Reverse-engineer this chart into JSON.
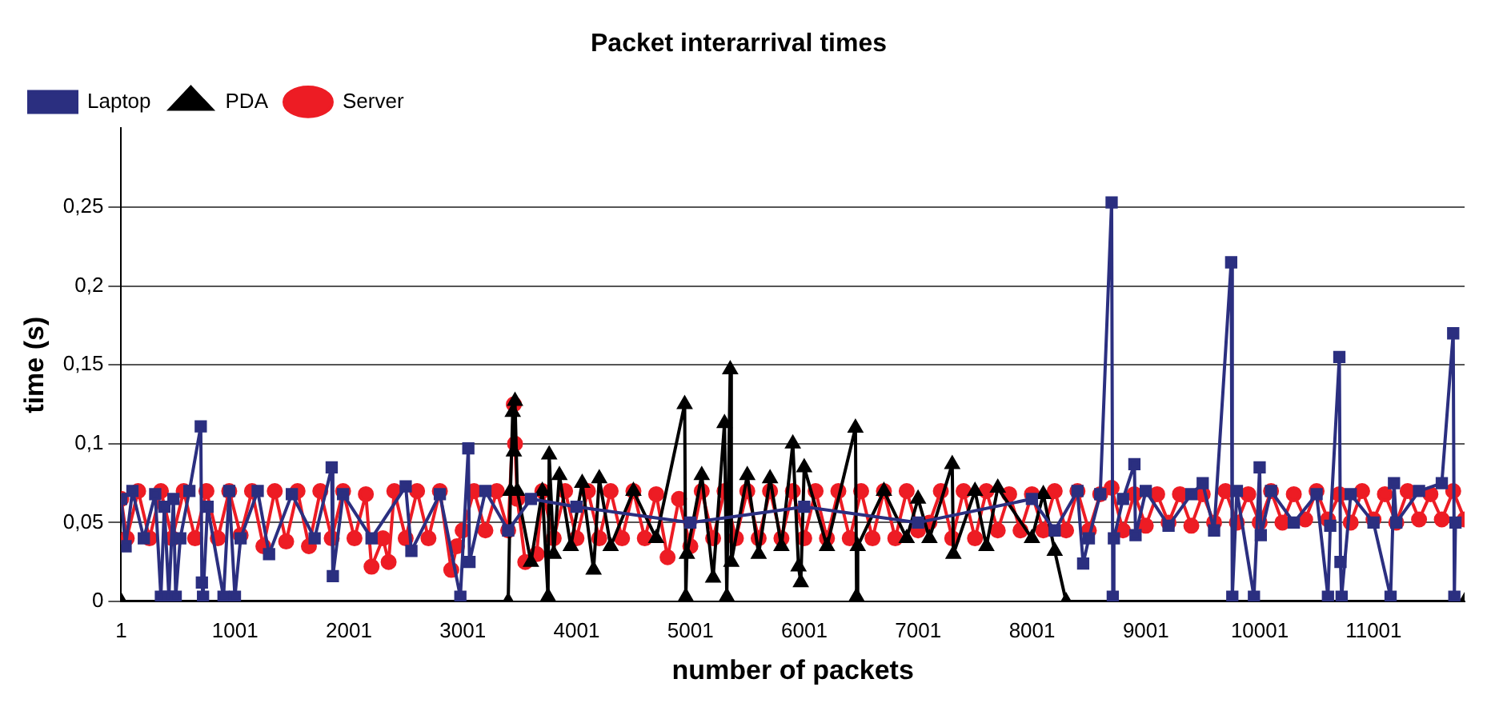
{
  "chart_data": {
    "type": "line",
    "title": "Packet interarrival times",
    "xlabel": "number of packets",
    "ylabel": "time (s)",
    "xlim": [
      1,
      11800
    ],
    "xticks": [
      1,
      1001,
      2001,
      3001,
      4001,
      5001,
      6001,
      7001,
      8001,
      9001,
      10001,
      11001
    ],
    "ylim": [
      0,
      0.3
    ],
    "yticks": [
      0,
      {
        "value": 0.05,
        "label": "0,05"
      },
      {
        "value": 0.1,
        "label": "0,1"
      },
      {
        "value": 0.15,
        "label": "0,15"
      },
      {
        "value": 0.2,
        "label": "0,2"
      },
      {
        "value": 0.25,
        "label": "0,25"
      }
    ],
    "grid": "y",
    "legend": "top left",
    "line_style": "solid",
    "series": [
      {
        "name": "Laptop",
        "color": "#2b2f80",
        "marker": "square",
        "x": [
          1,
          40,
          100,
          200,
          300,
          350,
          380,
          420,
          460,
          480,
          520,
          600,
          700,
          710,
          720,
          760,
          900,
          950,
          1000,
          1050,
          1200,
          1300,
          1500,
          1700,
          1850,
          1860,
          1950,
          2200,
          2500,
          2550,
          2800,
          2980,
          3050,
          3060,
          3200,
          3400,
          3600,
          4000,
          5000,
          6000,
          7000,
          8000,
          8200,
          8400,
          8450,
          8500,
          8600,
          8700,
          8710,
          8720,
          8800,
          8900,
          8910,
          9000,
          9200,
          9400,
          9500,
          9600,
          9750,
          9760,
          9800,
          9950,
          10000,
          10010,
          10100,
          10300,
          10500,
          10600,
          10620,
          10700,
          10710,
          10720,
          10800,
          11000,
          11150,
          11180,
          11200,
          11400,
          11600,
          11700,
          11710,
          11720
        ],
        "values": [
          0.065,
          0.035,
          0.07,
          0.04,
          0.068,
          0.003,
          0.06,
          0.003,
          0.065,
          0.003,
          0.04,
          0.07,
          0.111,
          0.012,
          0.003,
          0.06,
          0.003,
          0.07,
          0.003,
          0.04,
          0.07,
          0.03,
          0.068,
          0.04,
          0.085,
          0.016,
          0.068,
          0.04,
          0.073,
          0.032,
          0.068,
          0.003,
          0.097,
          0.025,
          0.07,
          0.045,
          0.065,
          0.06,
          0.05,
          0.06,
          0.05,
          0.065,
          0.045,
          0.07,
          0.024,
          0.04,
          0.068,
          0.253,
          0.003,
          0.04,
          0.065,
          0.087,
          0.042,
          0.07,
          0.048,
          0.068,
          0.075,
          0.045,
          0.215,
          0.003,
          0.07,
          0.003,
          0.085,
          0.042,
          0.07,
          0.05,
          0.068,
          0.003,
          0.048,
          0.155,
          0.025,
          0.003,
          0.068,
          0.05,
          0.003,
          0.075,
          0.05,
          0.07,
          0.075,
          0.17,
          0.003,
          0.05
        ]
      },
      {
        "name": "PDA",
        "color": "#000000",
        "marker": "triangle",
        "x": [
          1,
          3400,
          3420,
          3440,
          3450,
          3460,
          3480,
          3600,
          3700,
          3750,
          3760,
          3800,
          3850,
          3950,
          4050,
          4150,
          4200,
          4300,
          4500,
          4700,
          4950,
          4960,
          4970,
          5100,
          5200,
          5300,
          5320,
          5350,
          5360,
          5500,
          5600,
          5700,
          5800,
          5900,
          5950,
          5970,
          6000,
          6200,
          6450,
          6460,
          6470,
          6700,
          6900,
          7000,
          7100,
          7300,
          7310,
          7500,
          7600,
          7700,
          8000,
          8100,
          8200,
          8300,
          11800
        ],
        "values": [
          0,
          0,
          0.07,
          0.12,
          0.095,
          0.127,
          0.07,
          0.025,
          0.07,
          0.003,
          0.093,
          0.03,
          0.08,
          0.035,
          0.075,
          0.02,
          0.078,
          0.035,
          0.07,
          0.04,
          0.125,
          0.003,
          0.03,
          0.08,
          0.015,
          0.113,
          0.003,
          0.147,
          0.025,
          0.08,
          0.03,
          0.078,
          0.035,
          0.1,
          0.022,
          0.012,
          0.085,
          0.035,
          0.11,
          0.003,
          0.035,
          0.07,
          0.04,
          0.065,
          0.04,
          0.087,
          0.03,
          0.07,
          0.035,
          0.072,
          0.04,
          0.068,
          0.032,
          0,
          0
        ]
      },
      {
        "name": "Server",
        "color": "#ed1c24",
        "marker": "circle",
        "x": [
          1,
          50,
          150,
          250,
          350,
          450,
          550,
          650,
          750,
          850,
          950,
          1050,
          1150,
          1250,
          1350,
          1450,
          1550,
          1650,
          1750,
          1850,
          1950,
          2050,
          2150,
          2200,
          2300,
          2350,
          2400,
          2500,
          2600,
          2700,
          2800,
          2900,
          2950,
          3000,
          3100,
          3200,
          3300,
          3400,
          3450,
          3460,
          3480,
          3550,
          3650,
          3700,
          3800,
          3900,
          4000,
          4100,
          4200,
          4300,
          4400,
          4500,
          4600,
          4700,
          4800,
          4900,
          5000,
          5100,
          5200,
          5300,
          5400,
          5500,
          5600,
          5700,
          5800,
          5900,
          6000,
          6100,
          6200,
          6300,
          6400,
          6500,
          6600,
          6700,
          6800,
          6900,
          7000,
          7100,
          7200,
          7300,
          7400,
          7500,
          7600,
          7700,
          7800,
          7900,
          8000,
          8100,
          8200,
          8300,
          8400,
          8500,
          8600,
          8700,
          8800,
          8900,
          9000,
          9100,
          9200,
          9300,
          9400,
          9500,
          9600,
          9700,
          9800,
          9900,
          10000,
          10100,
          10200,
          10300,
          10400,
          10500,
          10600,
          10700,
          10800,
          10900,
          11000,
          11100,
          11200,
          11300,
          11400,
          11500,
          11600,
          11700,
          11800
        ],
        "values": [
          0.065,
          0.04,
          0.07,
          0.04,
          0.07,
          0.04,
          0.07,
          0.04,
          0.07,
          0.04,
          0.07,
          0.042,
          0.07,
          0.035,
          0.07,
          0.038,
          0.07,
          0.035,
          0.07,
          0.04,
          0.07,
          0.04,
          0.068,
          0.022,
          0.04,
          0.025,
          0.07,
          0.04,
          0.07,
          0.04,
          0.07,
          0.02,
          0.035,
          0.045,
          0.07,
          0.045,
          0.07,
          0.045,
          0.125,
          0.1,
          0.065,
          0.025,
          0.03,
          0.07,
          0.04,
          0.07,
          0.04,
          0.07,
          0.04,
          0.07,
          0.04,
          0.07,
          0.04,
          0.068,
          0.028,
          0.065,
          0.035,
          0.07,
          0.04,
          0.07,
          0.04,
          0.07,
          0.04,
          0.07,
          0.04,
          0.07,
          0.04,
          0.07,
          0.04,
          0.07,
          0.04,
          0.07,
          0.04,
          0.07,
          0.04,
          0.07,
          0.045,
          0.05,
          0.07,
          0.04,
          0.07,
          0.04,
          0.07,
          0.045,
          0.068,
          0.045,
          0.068,
          0.045,
          0.07,
          0.045,
          0.07,
          0.045,
          0.068,
          0.072,
          0.045,
          0.068,
          0.048,
          0.068,
          0.05,
          0.068,
          0.048,
          0.068,
          0.05,
          0.07,
          0.05,
          0.068,
          0.05,
          0.07,
          0.05,
          0.068,
          0.052,
          0.07,
          0.052,
          0.068,
          0.05,
          0.07,
          0.052,
          0.068,
          0.05,
          0.07,
          0.052,
          0.068,
          0.052,
          0.07,
          0.052
        ]
      }
    ]
  }
}
